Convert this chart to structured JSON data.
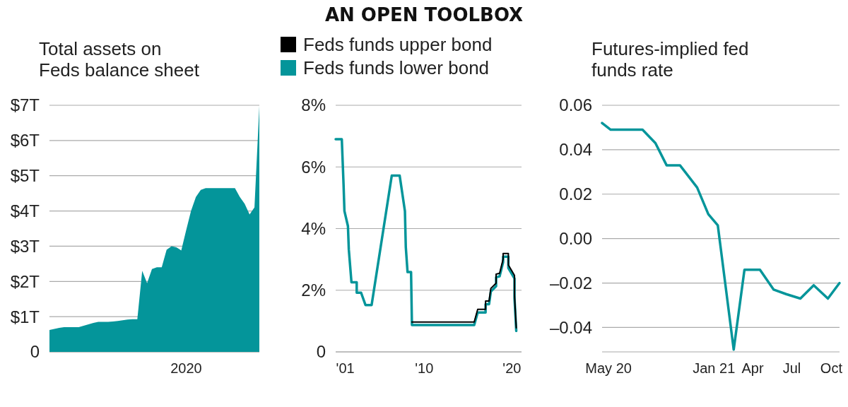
{
  "chart_data": [
    {
      "type": "area",
      "title": "Total assets on Feds balance sheet",
      "categories": [
        null,
        null,
        null,
        null,
        null,
        null,
        null,
        null,
        null,
        null,
        null,
        null,
        null,
        null,
        null,
        null,
        null,
        null,
        null,
        null,
        null,
        null,
        null,
        null,
        null,
        null,
        null,
        null,
        "2020",
        null,
        null,
        null,
        null,
        null,
        null,
        null,
        null,
        null,
        null,
        null,
        null,
        null,
        null,
        null
      ],
      "values": [
        0.62,
        0.65,
        0.68,
        0.7,
        0.7,
        0.7,
        0.7,
        0.74,
        0.78,
        0.82,
        0.85,
        0.85,
        0.85,
        0.86,
        0.88,
        0.9,
        0.92,
        0.93,
        0.93,
        2.3,
        1.95,
        2.35,
        2.4,
        2.4,
        2.9,
        3.0,
        2.97,
        2.88,
        3.45,
        4.0,
        4.4,
        4.6,
        4.65,
        4.65,
        4.65,
        4.65,
        4.65,
        4.65,
        4.65,
        4.4,
        4.2,
        3.9,
        4.1,
        6.98
      ],
      "color": "#04959a",
      "ylim": [
        0,
        7
      ],
      "yticks": [
        {
          "value": 0,
          "label": "0"
        },
        {
          "value": 1,
          "label": "$1T"
        },
        {
          "value": 2,
          "label": "$2T"
        },
        {
          "value": 3,
          "label": "$3T"
        },
        {
          "value": 4,
          "label": "$4T"
        },
        {
          "value": 5,
          "label": "$5T"
        },
        {
          "value": 6,
          "label": "$6T"
        },
        {
          "value": 7,
          "label": "$7T"
        }
      ],
      "grid": true
    },
    {
      "type": "line",
      "title": "AN OPEN TOOLBOX",
      "legend": "top",
      "grid": true,
      "xlim": [
        1999.9,
        2021.1
      ],
      "xticks": [
        {
          "value": 2001,
          "label": "'01"
        },
        {
          "value": 2010,
          "label": "'10"
        },
        {
          "value": 2020,
          "label": "'20"
        }
      ],
      "ylim": [
        0,
        8
      ],
      "yticks": [
        {
          "value": 0,
          "label": "0"
        },
        {
          "value": 2,
          "label": "2%"
        },
        {
          "value": 4,
          "label": "4%"
        },
        {
          "value": 6,
          "label": "6%"
        },
        {
          "value": 8,
          "label": "8%"
        }
      ],
      "series": [
        {
          "name": "Feds funds upper bond",
          "color": "#000000",
          "x": [
            2008.6,
            2015.7,
            2016.1,
            2017.0,
            2017.0,
            2017.4,
            2017.6,
            2018.2,
            2018.2,
            2018.6,
            2019.0,
            2019.0,
            2019.6,
            2019.6,
            2020.3,
            2020.3,
            2020.5
          ],
          "values": [
            0.97,
            0.97,
            1.38,
            1.38,
            1.65,
            1.65,
            2.06,
            2.23,
            2.52,
            2.55,
            3.01,
            3.19,
            3.19,
            2.82,
            2.48,
            1.84,
            0.78
          ]
        },
        {
          "name": "Feds funds lower bond",
          "color": "#04959a",
          "x": [
            1999.9,
            2000.6,
            2000.8,
            2000.9,
            2001.3,
            2001.4,
            2001.7,
            2002.3,
            2002.3,
            2002.8,
            2003.3,
            2004.0,
            2006.3,
            2007.2,
            2007.8,
            2007.9,
            2008.1,
            2008.5,
            2008.6,
            2015.7,
            2016.1,
            2017.0,
            2017.0,
            2017.4,
            2017.6,
            2018.2,
            2018.2,
            2018.6,
            2019.0,
            2019.0,
            2019.6,
            2019.6,
            2020.3,
            2020.3,
            2020.5
          ],
          "values": [
            6.9,
            6.9,
            5.43,
            4.57,
            4.08,
            3.32,
            2.26,
            2.26,
            1.92,
            1.92,
            1.52,
            1.52,
            5.72,
            5.72,
            4.57,
            3.4,
            2.59,
            2.59,
            0.87,
            0.87,
            1.28,
            1.28,
            1.55,
            1.55,
            1.96,
            2.13,
            2.42,
            2.45,
            2.91,
            3.09,
            3.09,
            2.72,
            2.38,
            1.74,
            0.68
          ]
        }
      ]
    },
    {
      "type": "line",
      "title": "Futures-implied fed funds rate",
      "grid": true,
      "color": "#04959a",
      "x": [
        "2020-04-16",
        "2020-05-06",
        "2020-07-19",
        "2020-08-18",
        "2020-09-13",
        "2020-10-14",
        "2020-11-23",
        "2020-12-19",
        "2021-01-10",
        "2021-02-16",
        "2021-03-13",
        "2021-04-18",
        "2021-05-20",
        "2021-06-18",
        "2021-07-21",
        "2021-08-21",
        "2021-09-23",
        "2021-10-20"
      ],
      "values": [
        0.052,
        0.049,
        0.049,
        0.043,
        0.033,
        0.033,
        0.023,
        0.011,
        0.006,
        -0.05,
        -0.014,
        -0.014,
        -0.023,
        -0.025,
        -0.027,
        -0.021,
        -0.027,
        -0.02
      ],
      "xlim": [
        "2020-04-16",
        "2021-10-20"
      ],
      "xticks": [
        {
          "value": "2020-05-01",
          "label": "May 20"
        },
        {
          "value": "2021-01-01",
          "label": "Jan 21"
        },
        {
          "value": "2021-04-01",
          "label": "Apr"
        },
        {
          "value": "2021-07-01",
          "label": "Jul"
        },
        {
          "value": "2021-10-01",
          "label": "Oct"
        }
      ],
      "ylim": [
        -0.051,
        0.06
      ],
      "yticks": [
        {
          "value": 0.06,
          "label": "0.06"
        },
        {
          "value": 0.04,
          "label": "0.04"
        },
        {
          "value": 0.02,
          "label": "0.02"
        },
        {
          "value": 0,
          "label": "0.00"
        },
        {
          "value": -0.02,
          "label": "–0.02"
        },
        {
          "value": -0.04,
          "label": "–0.04"
        }
      ]
    }
  ]
}
